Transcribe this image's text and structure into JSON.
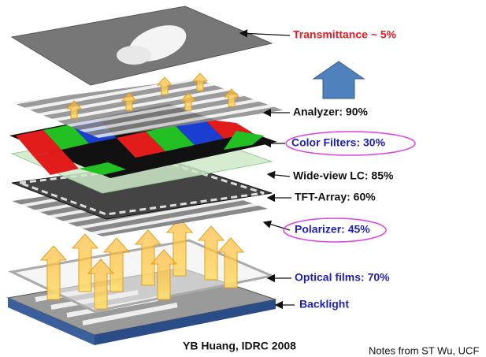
{
  "layers": [
    {
      "label": "Transmittance ~ 5%"
    },
    {
      "label": "Analyzer: 90%"
    },
    {
      "label": "Color Filters: 30%"
    },
    {
      "label": "Wide-view LC: 85%"
    },
    {
      "label": "TFT-Array: 60%"
    },
    {
      "label": "Polarizer: 45%"
    },
    {
      "label": "Optical films: 70%"
    },
    {
      "label": "Backlight"
    }
  ],
  "footer": {
    "citation": "YB Huang, IDRC 2008",
    "notes": "Notes from ST Wu, UCF"
  }
}
